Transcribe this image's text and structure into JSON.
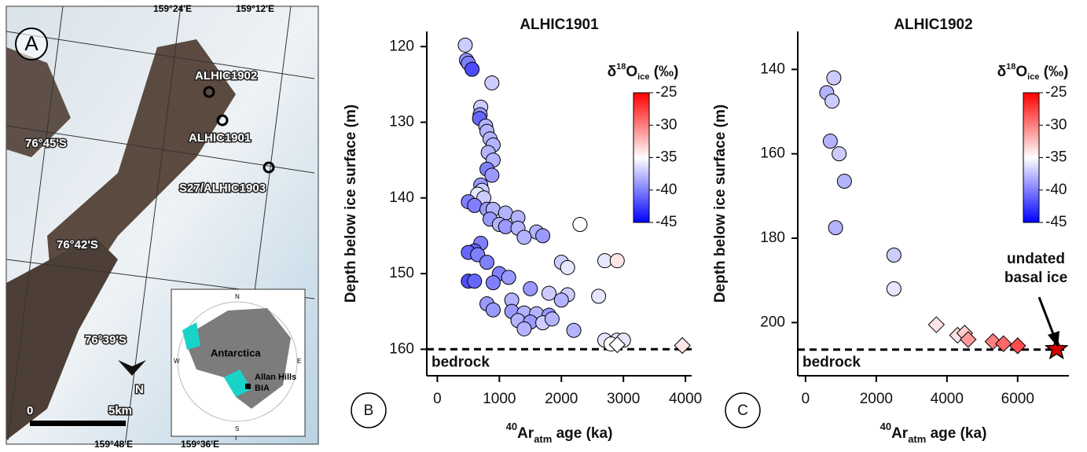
{
  "map": {
    "panel": "A",
    "top_lons": [
      "159°24'E",
      "159°12'E"
    ],
    "bottom_lons": [
      "159°48'E",
      "159°36'E"
    ],
    "lats": [
      "76°45'S",
      "76°42'S",
      "76°39'S"
    ],
    "sites": [
      "ALHIC1902",
      "ALHIC1901",
      "S27/ALHIC1903"
    ],
    "scale": [
      "0",
      "5km"
    ],
    "north": "N",
    "inset": {
      "compass": [
        "N",
        "W",
        "E",
        "S"
      ],
      "continent": "Antarctica",
      "site": [
        "Allan Hills",
        "BIA"
      ]
    }
  },
  "chart_data": [
    {
      "type": "scatter",
      "panel": "B",
      "title": "ALHIC1901",
      "y_label": "Depth below ice surface (m)",
      "x_label": {
        "sup": "40",
        "main": "Ar",
        "sub": "atm",
        "rest": " age (ka)"
      },
      "xlim": [
        -170,
        4100
      ],
      "xticks": [
        0,
        1000,
        2000,
        3000,
        4000
      ],
      "ylim": [
        163.5,
        118
      ],
      "yticks": [
        120,
        130,
        140,
        150,
        160
      ],
      "bedrock": {
        "value": 160,
        "label": "bedrock"
      },
      "colorbar": {
        "label": {
          "delta": "δ",
          "sup": "18",
          "main": "O",
          "sub": "ice",
          "rest": " (‰)"
        },
        "lim": [
          -45,
          -25
        ],
        "ticks": [
          -25,
          -30,
          -35,
          -40,
          -45
        ],
        "colors": [
          "#0000ff",
          "#ffffff",
          "#ff0000"
        ]
      },
      "series": [
        {
          "marker": "circle",
          "x": [
            450,
            470,
            500,
            560,
            880,
            700,
            690,
            680,
            780,
            800,
            850,
            900,
            820,
            900,
            800,
            880,
            700,
            720,
            650,
            750,
            500,
            600,
            800,
            900,
            1100,
            1300,
            850,
            1000,
            1100,
            1300,
            1600,
            1700,
            2300,
            1400,
            700,
            600,
            500,
            650,
            800,
            2000,
            2700,
            2900,
            2100,
            1000,
            1150,
            500,
            600,
            900,
            1500,
            1800,
            2100,
            2600,
            1200,
            2000,
            800,
            900,
            1200,
            1400,
            1600,
            1800,
            1300,
            1500,
            1700,
            1850,
            2200,
            1400,
            2700,
            2900,
            3000,
            2800
          ],
          "values": [
            119.8,
            121.8,
            122.2,
            123,
            124.8,
            128,
            129,
            129.5,
            130.5,
            131.2,
            132.2,
            133,
            134,
            135,
            136.2,
            137,
            138.3,
            139,
            139.5,
            140,
            140.5,
            141,
            141.5,
            141.5,
            142,
            142.6,
            142.8,
            143.5,
            143.8,
            144,
            144.5,
            145,
            143.5,
            145.2,
            146,
            147,
            147.2,
            147.5,
            148.5,
            148.5,
            148.3,
            148.3,
            149.2,
            150,
            150.5,
            151,
            151,
            151.2,
            152,
            152.6,
            152.8,
            153,
            153.5,
            153.5,
            154,
            154.8,
            155,
            155.2,
            155.3,
            155.5,
            156.2,
            156.4,
            156.5,
            156,
            157.5,
            157.3,
            158.8,
            158.8,
            158.8,
            159.3
          ],
          "d18O": [
            -37,
            -39,
            -40,
            -42,
            -37,
            -37,
            -39,
            -41,
            -38,
            -38,
            -38,
            -38,
            -38,
            -38,
            -40,
            -39,
            -39,
            -37,
            -36,
            -37,
            -40,
            -40,
            -39,
            -38,
            -38,
            -38,
            -39,
            -38,
            -39,
            -38,
            -38,
            -39,
            -35,
            -38,
            -40,
            -41,
            -41,
            -40,
            -40,
            -37,
            -36,
            -34,
            -36,
            -40,
            -39,
            -42,
            -41,
            -40,
            -39,
            -37,
            -37,
            -36,
            -38,
            -38,
            -39,
            -39,
            -39,
            -38,
            -38,
            -39,
            -38,
            -39,
            -37,
            -38,
            -38,
            -38,
            -36,
            -36,
            -36,
            -35
          ]
        },
        {
          "marker": "diamond",
          "x": [
            2900,
            3950
          ],
          "values": [
            159.4,
            159.5
          ],
          "d18O": [
            -35,
            -34
          ]
        }
      ]
    },
    {
      "type": "scatter",
      "panel": "C",
      "title": "ALHIC1902",
      "y_label": "Depth below ice surface (m)",
      "x_label": {
        "sup": "40",
        "main": "Ar",
        "sub": "atm",
        "rest": " age (ka)"
      },
      "xlim": [
        -220,
        7450
      ],
      "xticks": [
        0,
        2000,
        4000,
        6000
      ],
      "ylim": [
        212.6,
        131
      ],
      "yticks": [
        140,
        160,
        180,
        200
      ],
      "bedrock": {
        "value": 206.4,
        "label": "bedrock"
      },
      "colorbar": {
        "label": {
          "delta": "δ",
          "sup": "18",
          "main": "O",
          "sub": "ice",
          "rest": " (‰)"
        },
        "lim": [
          -45,
          -25
        ],
        "ticks": [
          -25,
          -30,
          -35,
          -40,
          -45
        ],
        "colors": [
          "#0000ff",
          "#ffffff",
          "#ff0000"
        ]
      },
      "annotation": [
        "undated",
        "basal ice"
      ],
      "star": {
        "x": 7100,
        "value": 206.3,
        "color": "#d40000"
      },
      "series": [
        {
          "marker": "circle",
          "x": [
            600,
            800,
            750,
            700,
            950,
            1100,
            850,
            2500,
            2500
          ],
          "values": [
            145.5,
            142,
            147.5,
            157,
            160,
            166.5,
            177.5,
            184,
            192
          ],
          "d18O": [
            -38,
            -37,
            -37,
            -38,
            -37,
            -38,
            -38,
            -37,
            -36
          ]
        },
        {
          "marker": "diamond",
          "x": [
            3700,
            4300,
            4500,
            4600,
            5300,
            5600,
            6000
          ],
          "values": [
            200.5,
            203,
            202.5,
            204,
            204.5,
            205,
            205.5
          ],
          "d18O": [
            -34,
            -34,
            -33,
            -31,
            -30,
            -29,
            -28
          ]
        }
      ]
    }
  ]
}
